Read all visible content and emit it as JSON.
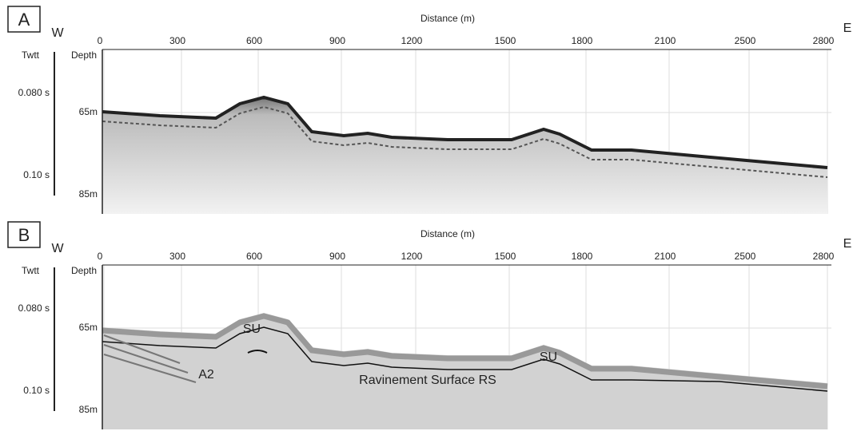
{
  "panels": [
    {
      "label": "A",
      "west": "W",
      "east": "E",
      "axis_title": "Distance (m)",
      "ticks": [
        "0",
        "300",
        "600",
        "900",
        "1200",
        "1500",
        "1800",
        "2100",
        "2500",
        "2800"
      ],
      "twtt": "Twtt",
      "depth": "Depth",
      "time_labels": [
        "0.080 s",
        "0.10 s"
      ],
      "depth_labels": [
        "65m",
        "85m"
      ]
    },
    {
      "label": "B",
      "west": "W",
      "east": "E",
      "axis_title": "Distance (m)",
      "ticks": [
        "0",
        "300",
        "600",
        "900",
        "1200",
        "1500",
        "1800",
        "2100",
        "2500",
        "2800"
      ],
      "twtt": "Twtt",
      "depth": "Depth",
      "time_labels": [
        "0.080 s",
        "0.10 s"
      ],
      "depth_labels": [
        "65m",
        "85m"
      ],
      "annotations": [
        "SU",
        "SU",
        "A2",
        "Ravinement Surface RS"
      ]
    }
  ]
}
